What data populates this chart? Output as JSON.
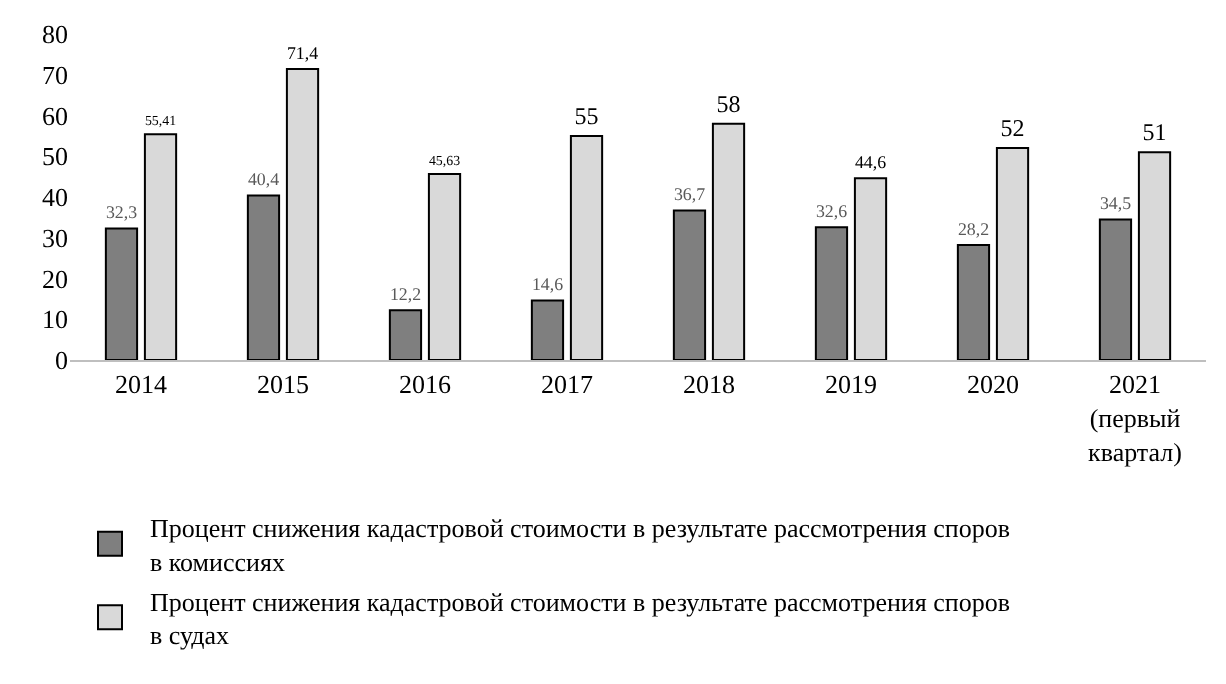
{
  "chart_data": {
    "type": "bar",
    "categories": [
      "2014",
      "2015",
      "2016",
      "2017",
      "2018",
      "2019",
      "2020",
      "2021\n(первый\nквартал)"
    ],
    "series": [
      {
        "name": "Процент снижения кадастровой стоимости в результате рассмотрения споров\nв комиссиях",
        "color": "#7f7f7f",
        "values": [
          32.3,
          40.4,
          12.2,
          14.6,
          36.7,
          32.6,
          28.2,
          34.5
        ],
        "value_labels": [
          "32,3",
          "40,4",
          "12,2",
          "14,6",
          "36,7",
          "32,6",
          "28,2",
          "34,5"
        ]
      },
      {
        "name": "Процент снижения кадастровой стоимости в результате рассмотрения споров\nв судах",
        "color": "#d9d9d9",
        "values": [
          55.41,
          71.4,
          45.63,
          55,
          58,
          44.6,
          52,
          51
        ],
        "value_labels": [
          "55,41",
          "71,4",
          "45,63",
          "55",
          "58",
          "44,6",
          "52",
          "51"
        ]
      }
    ],
    "ylim": [
      0,
      80
    ],
    "yticks": [
      0,
      10,
      20,
      30,
      40,
      50,
      60,
      70,
      80
    ],
    "grid": false,
    "legend": "bottom"
  }
}
